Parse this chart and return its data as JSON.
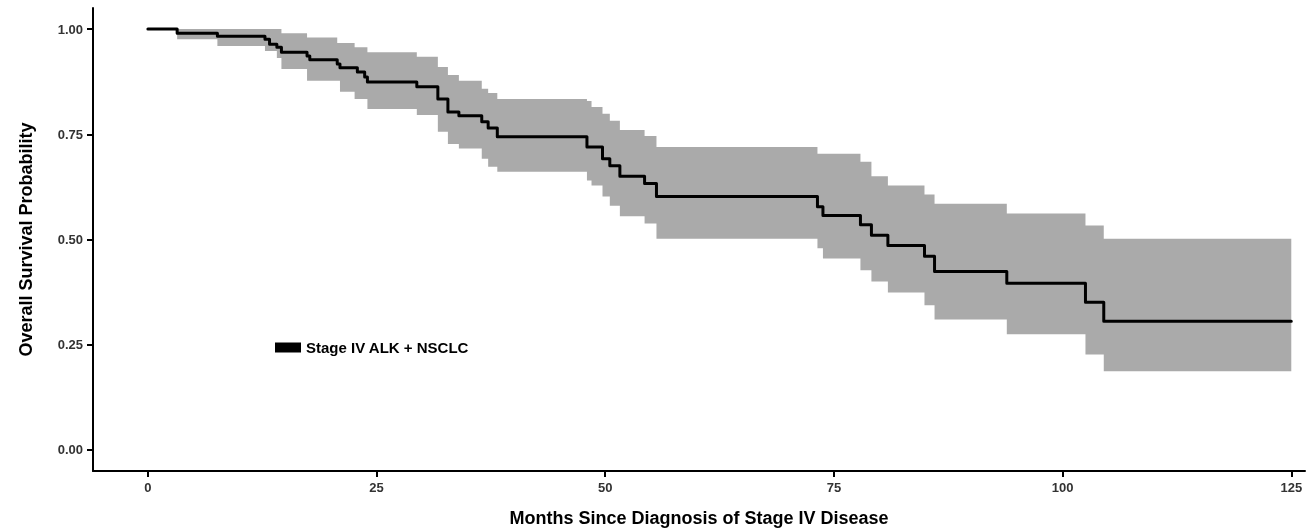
{
  "chart_data": {
    "type": "step",
    "xlabel": "Months Since Diagnosis of Stage IV Disease",
    "ylabel": "Overall Survival Probability",
    "xlim": [
      -6,
      126.5
    ],
    "xticks": [
      0,
      25,
      50,
      75,
      100,
      125
    ],
    "ylim": [
      -0.05,
      1.05
    ],
    "yticks": [
      {
        "value": 0,
        "label": "0.00"
      },
      {
        "value": 0.25,
        "label": "0.25"
      },
      {
        "value": 0.5,
        "label": "0.50"
      },
      {
        "value": 0.75,
        "label": "0.75"
      },
      {
        "value": 1,
        "label": "1.00"
      }
    ],
    "grid": false,
    "legend": "bottom left",
    "marker": "none",
    "line_style": "solid",
    "series": [
      {
        "name": "Stage IV ALK + NSCLC",
        "color": "#000000",
        "x": [
          0,
          3.2,
          7.6,
          12.8,
          13.3,
          14.1,
          14.6,
          17.4,
          17.7,
          20.7,
          21.0,
          22.6,
          22.9,
          23.7,
          24.0,
          29.4,
          31.7,
          32.8,
          34.0,
          36.5,
          37.2,
          38.2,
          48.0,
          48.5,
          49.7,
          50.5,
          51.6,
          54.3,
          55.6,
          73.2,
          73.8,
          77.9,
          79.1,
          80.9,
          84.9,
          86.0,
          93.9,
          102.5,
          104.5,
          125
        ],
        "values": [
          1.0,
          0.99,
          0.983,
          0.976,
          0.964,
          0.957,
          0.945,
          0.936,
          0.927,
          0.917,
          0.908,
          0.908,
          0.898,
          0.886,
          0.874,
          0.863,
          0.834,
          0.803,
          0.794,
          0.78,
          0.765,
          0.744,
          0.72,
          0.72,
          0.692,
          0.675,
          0.65,
          0.633,
          0.602,
          0.578,
          0.557,
          0.535,
          0.51,
          0.486,
          0.46,
          0.424,
          0.396,
          0.351,
          0.306,
          0.306
        ],
        "upper": [
          1.0,
          1.0,
          1.0,
          1.0,
          1.0,
          1.0,
          0.99,
          0.98,
          0.98,
          0.967,
          0.967,
          0.957,
          0.957,
          0.957,
          0.945,
          0.934,
          0.91,
          0.891,
          0.877,
          0.858,
          0.848,
          0.834,
          0.829,
          0.815,
          0.799,
          0.782,
          0.76,
          0.746,
          0.72,
          0.704,
          0.704,
          0.685,
          0.65,
          0.628,
          0.607,
          0.585,
          0.562,
          0.533,
          0.502,
          0.502
        ],
        "lower": [
          1.0,
          0.976,
          0.96,
          0.948,
          0.948,
          0.931,
          0.905,
          0.877,
          0.877,
          0.877,
          0.851,
          0.834,
          0.834,
          0.834,
          0.81,
          0.796,
          0.756,
          0.727,
          0.716,
          0.692,
          0.673,
          0.661,
          0.64,
          0.628,
          0.602,
          0.58,
          0.555,
          0.538,
          0.502,
          0.479,
          0.455,
          0.427,
          0.4,
          0.374,
          0.344,
          0.31,
          0.275,
          0.227,
          0.187,
          0.187
        ]
      }
    ]
  }
}
